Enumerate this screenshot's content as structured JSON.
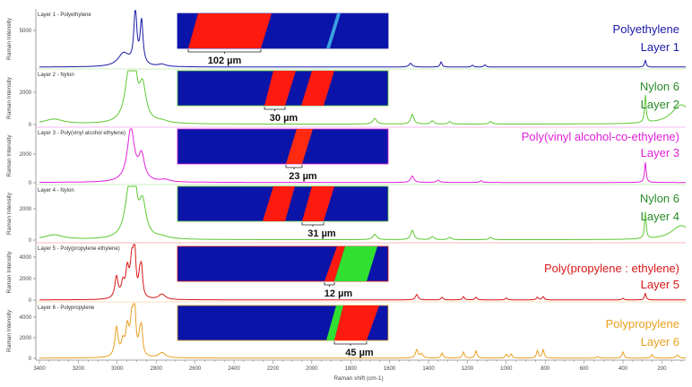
{
  "chart_data": {
    "type": "line",
    "xlabel": "Raman shift (cm-1)",
    "ylabel": "Raman Intensity",
    "xlim": [
      3400,
      80
    ],
    "x_ticks": [
      3400,
      3200,
      3000,
      2800,
      2600,
      2400,
      2200,
      2000,
      1800,
      1600,
      1400,
      1200,
      1000,
      800,
      600,
      400,
      200
    ],
    "grid": false,
    "panels": [
      {
        "title": "Layer 1 - Polyethylene",
        "material": "Polyethylene",
        "layer": "Layer 1",
        "color": "#1a1aa8",
        "ylim": [
          0,
          7500
        ],
        "y_ticks": [
          5000
        ],
        "peaks": [
          [
            2967,
            1800,
            35
          ],
          [
            2907,
            7400,
            9
          ],
          [
            2875,
            5900,
            9
          ],
          [
            2770,
            300,
            25
          ],
          [
            1492,
            500,
            10
          ],
          [
            1335,
            700,
            6
          ],
          [
            1174,
            250,
            6
          ],
          [
            1110,
            300,
            6
          ],
          [
            285,
            900,
            5
          ]
        ],
        "map": {
          "bands": [
            {
              "color": "#ff1a10",
              "top": [
                23,
                105
              ],
              "bottom": [
                12,
                93
              ]
            },
            {
              "color": "#3aa0e0",
              "top": [
                178,
                182
              ],
              "bottom": [
                166,
                170
              ]
            }
          ]
        },
        "scale_bar": "102 µm"
      },
      {
        "title": "Layer 2 - Nylon",
        "material": "Nylon 6",
        "layer": "Layer 2",
        "color": "#5cc832",
        "ylim": [
          0,
          3500
        ],
        "y_ticks": [
          0,
          2000
        ],
        "peaks": [
          [
            3326,
            300,
            60
          ],
          [
            2940,
            2900,
            25
          ],
          [
            2912,
            3300,
            12
          ],
          [
            2870,
            2200,
            22
          ],
          [
            2770,
            120,
            40
          ],
          [
            1676,
            350,
            12
          ],
          [
            1483,
            600,
            10
          ],
          [
            1380,
            200,
            10
          ],
          [
            1290,
            150,
            10
          ],
          [
            1080,
            150,
            10
          ],
          [
            285,
            1700,
            5
          ],
          [
            100,
            1200,
            60
          ]
        ],
        "map": {
          "bands": [
            {
              "color": "#ff1a10",
              "top": [
                107,
                132
              ],
              "bottom": [
                97,
                120
              ]
            },
            {
              "color": "#ff1a10",
              "top": [
                150,
                175
              ],
              "bottom": [
                138,
                163
              ]
            }
          ]
        },
        "scale_bar": "30 µm"
      },
      {
        "title": "Layer 3 - Poly(vinyl alcohol ethylene)",
        "material": "Poly(vinyl alcohol-co-ethylene)",
        "layer": "Layer 3",
        "color": "#e020d8",
        "ylim": [
          0,
          3800
        ],
        "y_ticks": [
          0,
          2000
        ],
        "peaks": [
          [
            2930,
            3700,
            22
          ],
          [
            2875,
            1700,
            18
          ],
          [
            2755,
            150,
            30
          ],
          [
            1483,
            450,
            10
          ],
          [
            1350,
            150,
            10
          ],
          [
            1130,
            120,
            8
          ],
          [
            285,
            1400,
            5
          ]
        ],
        "map": {
          "bands": [
            {
              "color": "#ff2a10",
              "top": [
                133,
                151
              ],
              "bottom": [
                121,
                139
              ]
            }
          ]
        },
        "scale_bar": "23 µm"
      },
      {
        "title": "Layer 4 - Nylon",
        "material": "Nylon 6",
        "layer": "Layer 4",
        "color": "#5cc832",
        "ylim": [
          0,
          3500
        ],
        "y_ticks": [
          0,
          2000
        ],
        "peaks": [
          [
            3326,
            300,
            60
          ],
          [
            2940,
            2900,
            25
          ],
          [
            2912,
            3300,
            12
          ],
          [
            2870,
            2200,
            22
          ],
          [
            2770,
            120,
            40
          ],
          [
            1676,
            350,
            12
          ],
          [
            1483,
            600,
            10
          ],
          [
            1380,
            200,
            10
          ],
          [
            1290,
            150,
            10
          ],
          [
            1080,
            150,
            10
          ],
          [
            285,
            1700,
            5
          ],
          [
            100,
            900,
            60
          ]
        ],
        "map": {
          "bands": [
            {
              "color": "#ff1a10",
              "top": [
                107,
                131
              ],
              "bottom": [
                95,
                120
              ]
            },
            {
              "color": "#ff1a10",
              "top": [
                150,
                175
              ],
              "bottom": [
                139,
                163
              ]
            }
          ]
        },
        "scale_bar": "31 µm"
      },
      {
        "title": "Layer 5 - Poly(propylene ethylene)",
        "material": "Poly(propylene : ethylene)",
        "layer": "Layer 5",
        "color": "#d81818",
        "ylim": [
          0,
          4800
        ],
        "y_ticks": [
          0,
          2000,
          4000
        ],
        "peaks": [
          [
            3004,
            2000,
            10
          ],
          [
            2971,
            1300,
            10
          ],
          [
            2948,
            2500,
            10
          ],
          [
            2925,
            3300,
            10
          ],
          [
            2911,
            4500,
            7
          ],
          [
            2884,
            1800,
            8
          ],
          [
            2875,
            2300,
            7
          ],
          [
            2770,
            500,
            20
          ],
          [
            1460,
            500,
            8
          ],
          [
            1330,
            250,
            6
          ],
          [
            1220,
            300,
            6
          ],
          [
            1155,
            250,
            6
          ],
          [
            1000,
            180,
            6
          ],
          [
            840,
            250,
            6
          ],
          [
            810,
            300,
            6
          ],
          [
            400,
            150,
            6
          ],
          [
            285,
            600,
            5
          ]
        ],
        "map": {
          "bands": [
            {
              "color": "#ff1a10",
              "top": [
                178,
                187
              ],
              "bottom": [
                164,
                175
              ]
            },
            {
              "color": "#30e030",
              "top": [
                187,
                223
              ],
              "bottom": [
                175,
                211
              ]
            }
          ]
        },
        "scale_bar": "12 µm"
      },
      {
        "title": "Layer 6 - Polypropylene",
        "material": "Polypropylene",
        "layer": "Layer 6",
        "color": "#e8a020",
        "ylim": [
          0,
          4800
        ],
        "y_ticks": [
          0,
          2000,
          4000
        ],
        "peaks": [
          [
            3004,
            2800,
            10
          ],
          [
            2971,
            1300,
            10
          ],
          [
            2948,
            2600,
            10
          ],
          [
            2925,
            3400,
            10
          ],
          [
            2911,
            4700,
            7
          ],
          [
            2884,
            1600,
            8
          ],
          [
            2875,
            2300,
            7
          ],
          [
            2770,
            500,
            20
          ],
          [
            1460,
            800,
            8
          ],
          [
            1435,
            400,
            8
          ],
          [
            1330,
            500,
            6
          ],
          [
            1220,
            600,
            6
          ],
          [
            1155,
            700,
            6
          ],
          [
            1000,
            350,
            6
          ],
          [
            975,
            400,
            6
          ],
          [
            840,
            700,
            6
          ],
          [
            810,
            800,
            6
          ],
          [
            530,
            150,
            6
          ],
          [
            400,
            600,
            6
          ],
          [
            250,
            350,
            6
          ],
          [
            120,
            300,
            8
          ]
        ],
        "map": {
          "bands": [
            {
              "color": "#30e030",
              "top": [
                177,
                185
              ],
              "bottom": [
                166,
                175
              ]
            },
            {
              "color": "#ff1a10",
              "top": [
                185,
                225
              ],
              "bottom": [
                175,
                211
              ]
            }
          ]
        },
        "scale_bar": "45 µm"
      }
    ],
    "map_background": "#0a14a8"
  }
}
